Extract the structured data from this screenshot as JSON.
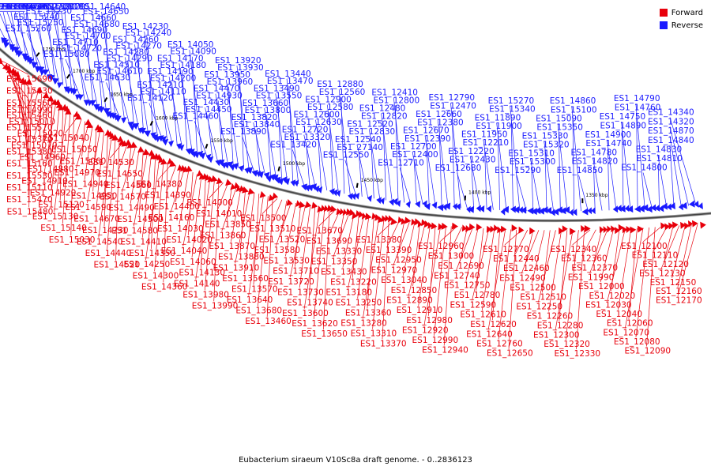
{
  "legend": {
    "forward": {
      "label": "Forward",
      "color": "#e8000b"
    },
    "reverse": {
      "label": "Reverse",
      "color": "#1a1aff"
    }
  },
  "caption": "Eubacterium siraeum V10Sc8a draft genome. - 0..2836123",
  "ticks": [
    "1750 kbp",
    "1700 kbp",
    "1650 kbp",
    "1600 kbp",
    "1550 kbp",
    "1500 kbp",
    "1450 kbp",
    "1400 kbp",
    "1350 kbp"
  ],
  "reverse_labels": [
    "ES1_16280",
    "ES1_16110",
    "ES1_15870",
    "ES1_15860",
    "ES1_15800",
    "ES1_15710",
    "ES1_15940",
    "ES1_15700",
    "ES1_15430",
    "ES1_15260",
    "ES1_15250",
    "ES1_15240",
    "ES1_15230",
    "ES1_15220",
    "ES1_15200",
    "ES1_15190",
    "ES1_15180",
    "ES1_15170",
    "ES1_15080",
    "ES1_14720",
    "ES1_14710",
    "ES1_14700",
    "ES1_14690",
    "ES1_14680",
    "ES1_14660",
    "ES1_14650",
    "ES1_14640",
    "ES1_14630",
    "ES1_14610",
    "ES1_14310",
    "ES1_14290",
    "ES1_14280",
    "ES1_14270",
    "ES1_14260",
    "ES1_14240",
    "ES1_14230",
    "ES1_14120",
    "ES1_14110",
    "ES1_14210",
    "ES1_14200",
    "ES1_14190",
    "ES1_14180",
    "ES1_14170",
    "ES1_14090",
    "ES1_14050",
    "ES1_14460",
    "ES1_14450",
    "ES1_14430",
    "ES1_14930",
    "ES1_14470",
    "ES1_13960",
    "ES1_13950",
    "ES1_13930",
    "ES1_13920",
    "ES1_13890",
    "ES1_13840",
    "ES1_13820",
    "ES1_13800",
    "ES1_13660",
    "ES1_13550",
    "ES1_13490",
    "ES1_13470",
    "ES1_13440",
    "ES1_13420",
    "ES1_13320",
    "ES1_12720",
    "ES1_12630",
    "ES1_12600",
    "ES1_12580",
    "ES1_12900",
    "ES1_12560",
    "ES1_12880",
    "ES1_12550",
    "ES1_27140",
    "ES1_12540",
    "ES1_12830",
    "ES1_12520",
    "ES1_12820",
    "ES1_12480",
    "ES1_12800",
    "ES1_12410",
    "ES1_12710",
    "ES1_12400",
    "ES1_12700",
    "ES1_12390",
    "ES1_12670",
    "ES1_12380",
    "ES1_12660",
    "ES1_12470",
    "ES1_12790",
    "ES1_12680",
    "ES1_12430",
    "ES1_12220",
    "ES1_12210",
    "ES1_11950",
    "ES1_11900",
    "ES1_11890",
    "ES1_15340",
    "ES1_15270",
    "ES1_15290",
    "ES1_15300",
    "ES1_15310",
    "ES1_15320",
    "ES1_15330",
    "ES1_15350",
    "ES1_15090",
    "ES1_15100",
    "ES1_14860",
    "ES1_14850",
    "ES1_14820",
    "ES1_14780",
    "ES1_14740",
    "ES1_14900",
    "ES1_14890",
    "ES1_14750",
    "ES1_14760",
    "ES1_14790",
    "ES1_14800",
    "ES1_14810",
    "ES1_14830",
    "ES1_14840",
    "ES1_14870",
    "ES1_14320",
    "ES1_14340"
  ],
  "forward_labels": [
    "ES1_15690",
    "ES1_15630",
    "ES1_15560",
    "ES1_15460",
    "ES1_15570",
    "ES1_15370",
    "ES1_15380",
    "ES1_15160",
    "ES1_15530",
    "ES1_15110",
    "ES1_15470",
    "ES1_15480",
    "ES1_14990",
    "ES1_15010",
    "ES1_15020",
    "ES1_15070",
    "ES1_14960",
    "ES1_14880",
    "ES1_14910",
    "ES1_14920",
    "ES1_15120",
    "ES1_15130",
    "ES1_15140",
    "ES1_15030",
    "ES1_15040",
    "ES1_15050",
    "ES1_15060",
    "ES1_14970",
    "ES1_14940",
    "ES1_14950",
    "ES1_14590",
    "ES1_14670",
    "ES1_14730",
    "ES1_14540",
    "ES1_14440",
    "ES1_14520",
    "ES1_14530",
    "ES1_14550",
    "ES1_14560",
    "ES1_14570",
    "ES1_14490",
    "ES1_14500",
    "ES1_14580",
    "ES1_14410",
    "ES1_14350",
    "ES1_14250",
    "ES1_14300",
    "ES1_14360",
    "ES1_14380",
    "ES1_14390",
    "ES1_14400",
    "ES1_14160",
    "ES1_14030",
    "ES1_14020",
    "ES1_14040",
    "ES1_14060",
    "ES1_14130",
    "ES1_14140",
    "ES1_13980",
    "ES1_13990",
    "ES1_14000",
    "ES1_14010",
    "ES1_13850",
    "ES1_13860",
    "ES1_13870",
    "ES1_13880",
    "ES1_13910",
    "ES1_13560",
    "ES1_13570",
    "ES1_13640",
    "ES1_13680",
    "ES1_13460",
    "ES1_13500",
    "ES1_13510",
    "ES1_13520",
    "ES1_13580",
    "ES1_13530",
    "ES1_13710",
    "ES1_13720",
    "ES1_13730",
    "ES1_13740",
    "ES1_13600",
    "ES1_13620",
    "ES1_13650",
    "ES1_13670",
    "ES1_13690",
    "ES1_13330",
    "ES1_13350",
    "ES1_13430",
    "ES1_13220",
    "ES1_13180",
    "ES1_13250",
    "ES1_13360",
    "ES1_13280",
    "ES1_13310",
    "ES1_13370",
    "ES1_13380",
    "ES1_13390",
    "ES1_12950",
    "ES1_12970",
    "ES1_13040",
    "ES1_12850",
    "ES1_12890",
    "ES1_12910",
    "ES1_12980",
    "ES1_12920",
    "ES1_12990",
    "ES1_12940",
    "ES1_12960",
    "ES1_13000",
    "ES1_12690",
    "ES1_12740",
    "ES1_12750",
    "ES1_12780",
    "ES1_12590",
    "ES1_12610",
    "ES1_12620",
    "ES1_12640",
    "ES1_12760",
    "ES1_12650",
    "ES1_12770",
    "ES1_12440",
    "ES1_12460",
    "ES1_12490",
    "ES1_12500",
    "ES1_12510",
    "ES1_12250",
    "ES1_12260",
    "ES1_12280",
    "ES1_12300",
    "ES1_12320",
    "ES1_12330",
    "ES1_12340",
    "ES1_12360",
    "ES1_12370",
    "ES1_11990",
    "ES1_12000",
    "ES1_12020",
    "ES1_12030",
    "ES1_12040",
    "ES1_12060",
    "ES1_12070",
    "ES1_12080",
    "ES1_12090",
    "ES1_12100",
    "ES1_12110",
    "ES1_12120",
    "ES1_12130",
    "ES1_12150",
    "ES1_12160",
    "ES1_12170"
  ]
}
